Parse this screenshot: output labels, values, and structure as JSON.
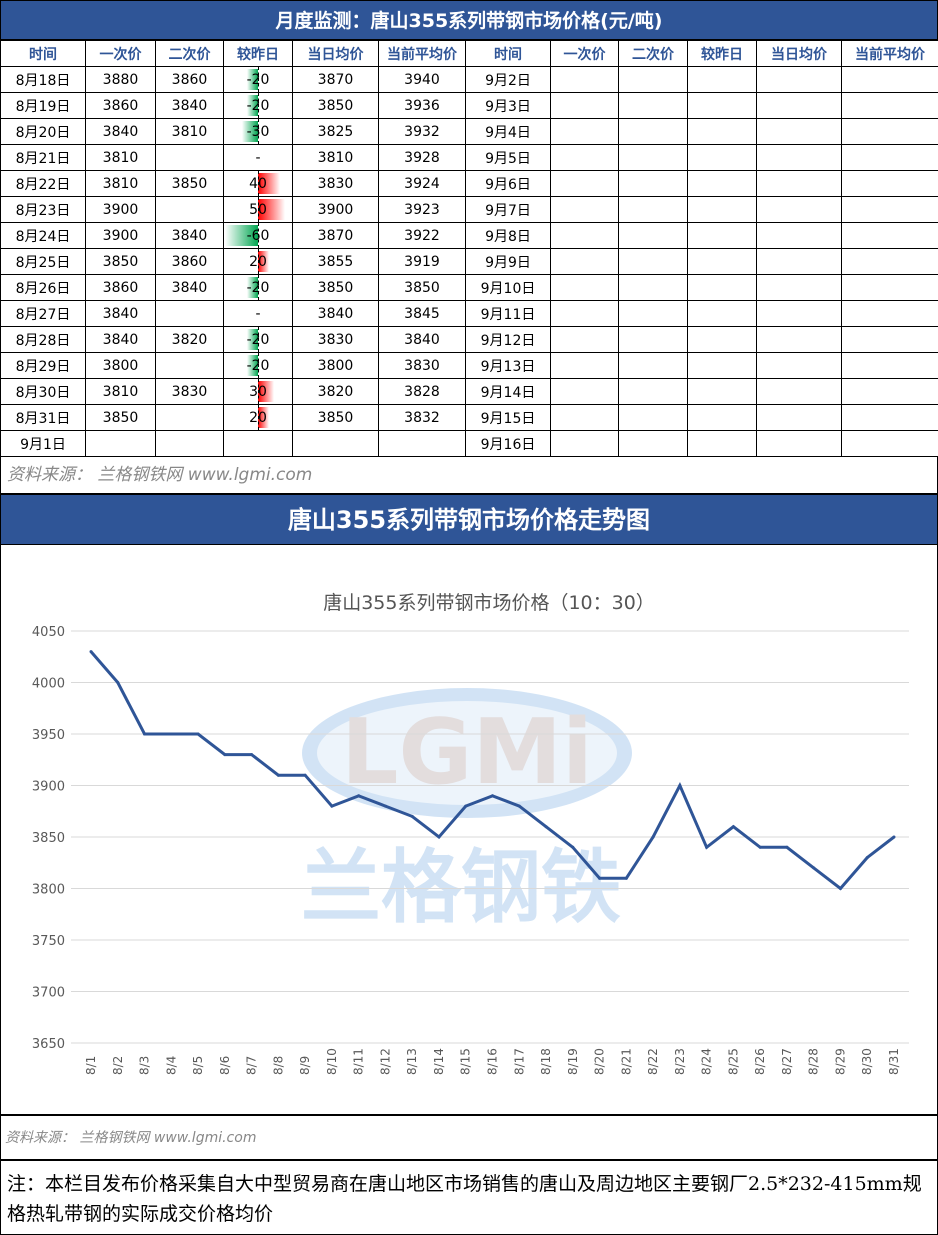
{
  "title": "月度监测：唐山355系列带钢市场价格(元/吨)",
  "headers": [
    "时间",
    "一次价",
    "二次价",
    "较昨日",
    "当日均价",
    "当前平均价",
    "时间",
    "一次价",
    "二次价",
    "较昨日",
    "当日均价",
    "当前平均价"
  ],
  "rows": [
    [
      "8月18日",
      "3880",
      "3860",
      "-20",
      "3870",
      "3940",
      "9月2日"
    ],
    [
      "8月19日",
      "3860",
      "3840",
      "-20",
      "3850",
      "3936",
      "9月3日"
    ],
    [
      "8月20日",
      "3840",
      "3810",
      "-30",
      "3825",
      "3932",
      "9月4日"
    ],
    [
      "8月21日",
      "3810",
      "",
      "-",
      "3810",
      "3928",
      "9月5日"
    ],
    [
      "8月22日",
      "3810",
      "3850",
      "40",
      "3830",
      "3924",
      "9月6日"
    ],
    [
      "8月23日",
      "3900",
      "",
      "50",
      "3900",
      "3923",
      "9月7日"
    ],
    [
      "8月24日",
      "3900",
      "3840",
      "-60",
      "3870",
      "3922",
      "9月8日"
    ],
    [
      "8月25日",
      "3850",
      "3860",
      "20",
      "3855",
      "3919",
      "9月9日"
    ],
    [
      "8月26日",
      "3860",
      "3840",
      "-20",
      "3850",
      "3850",
      "9月10日"
    ],
    [
      "8月27日",
      "3840",
      "",
      "-",
      "3840",
      "3845",
      "9月11日"
    ],
    [
      "8月28日",
      "3840",
      "3820",
      "-20",
      "3830",
      "3840",
      "9月12日"
    ],
    [
      "8月29日",
      "3800",
      "",
      "-20",
      "3800",
      "3830",
      "9月13日"
    ],
    [
      "8月30日",
      "3810",
      "3830",
      "30",
      "3820",
      "3828",
      "9月14日"
    ],
    [
      "8月31日",
      "3850",
      "",
      "20",
      "3850",
      "3832",
      "9月15日"
    ],
    [
      "9月1日",
      "",
      "",
      "",
      "",
      "",
      "9月16日"
    ]
  ],
  "source1": "资料来源： 兰格钢铁网 www.lgmi.com",
  "chart_title_bar": "唐山355系列带钢市场价格走势图",
  "source2": "资料来源： 兰格钢铁网 www.lgmi.com",
  "note": "注：本栏目发布价格采集自大中型贸易商在唐山地区市场销售的唐山及周边地区主要钢厂2.5*232-415mm规格热轧带钢的实际成交价格均价",
  "watermark": {
    "logo": "LGMi",
    "text": "兰格钢铁"
  },
  "colors": {
    "header": "#2F5597",
    "line": "#2F5597",
    "up": "#FF0000",
    "down": "#00A550"
  },
  "chart_data": {
    "type": "line",
    "title": "唐山355系列带钢市场价格（10：30）",
    "categories": [
      "8/1",
      "8/2",
      "8/3",
      "8/4",
      "8/5",
      "8/6",
      "8/7",
      "8/8",
      "8/9",
      "8/10",
      "8/11",
      "8/12",
      "8/13",
      "8/14",
      "8/15",
      "8/16",
      "8/17",
      "8/18",
      "8/19",
      "8/20",
      "8/21",
      "8/22",
      "8/23",
      "8/24",
      "8/25",
      "8/26",
      "8/27",
      "8/28",
      "8/29",
      "8/30",
      "8/31"
    ],
    "values": [
      4030,
      4000,
      3950,
      3950,
      3950,
      3930,
      3930,
      3910,
      3910,
      3880,
      3890,
      3880,
      3870,
      3850,
      3880,
      3890,
      3880,
      3860,
      3840,
      3810,
      3810,
      3850,
      3900,
      3840,
      3860,
      3840,
      3840,
      3820,
      3800,
      3830,
      3850
    ],
    "ylim": [
      3650,
      4050
    ],
    "yticks": [
      3650,
      3700,
      3750,
      3800,
      3850,
      3900,
      3950,
      4000,
      4050
    ],
    "grid": true
  }
}
